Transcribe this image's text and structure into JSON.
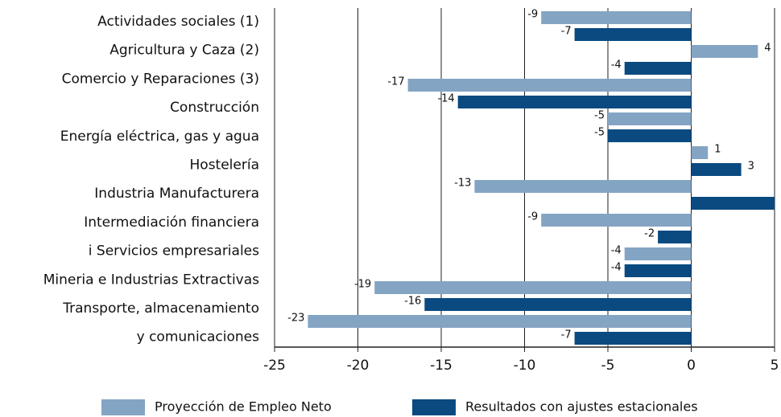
{
  "chart_data": {
    "type": "hbar",
    "categories": [
      [
        "Actividades sociales (1)"
      ],
      [
        "Agricultura y Caza (2)"
      ],
      [
        "Comercio y Reparaciones (3)"
      ],
      [
        "Construcción"
      ],
      [
        "Energía eléctrica, gas y agua"
      ],
      [
        "Hostelería"
      ],
      [
        "Industria Manufacturera"
      ],
      [
        "Intermediación financiera",
        "i Servicios empresariales"
      ],
      [
        "Mineria e Industrias Extractivas"
      ],
      [
        "Transporte, almacenamiento",
        "y comunicaciones"
      ]
    ],
    "series": [
      {
        "name": "Proyección de Empleo Neto",
        "color": "#84a4c4",
        "values": [
          -9,
          4,
          -17,
          -5,
          1,
          -13,
          -9,
          -4,
          -19,
          -23
        ]
      },
      {
        "name": "Resultados con ajustes estacionales",
        "color": "#0a4a80",
        "values": [
          -7,
          -4,
          -14,
          -5,
          3,
          5,
          -2,
          -4,
          -16,
          -7
        ],
        "value_labels": [
          "-7",
          "-4",
          "-14",
          "-5",
          "3",
          null,
          "-2",
          "-4",
          "-16",
          "-7"
        ]
      }
    ],
    "xlim": [
      -25,
      5
    ],
    "xticks": [
      -25,
      -20,
      -15,
      -10,
      -5,
      0,
      5
    ],
    "grid": true,
    "legend": "bottom"
  }
}
